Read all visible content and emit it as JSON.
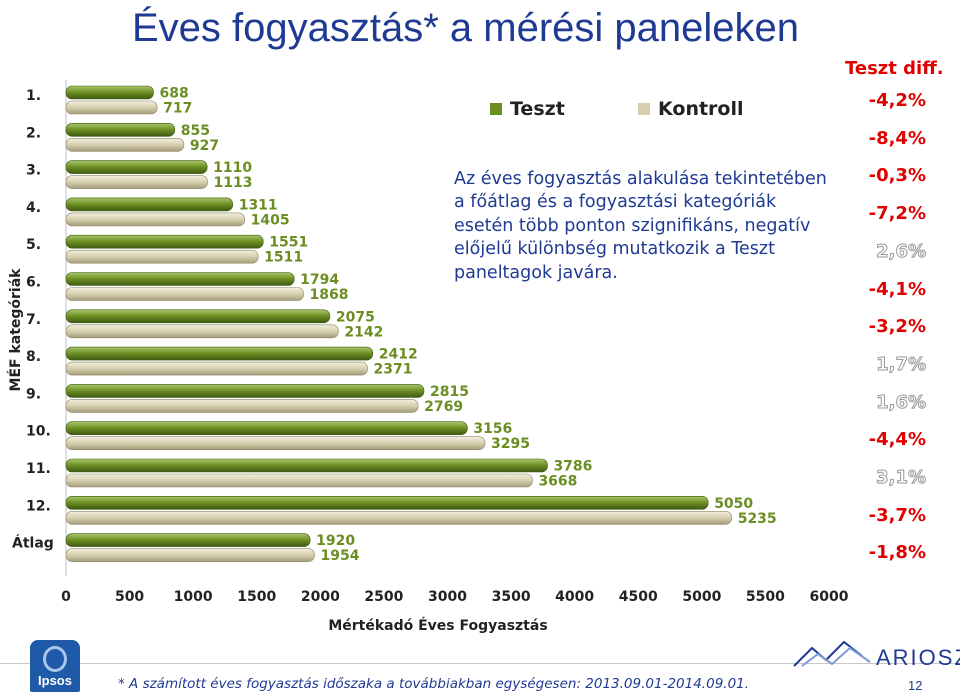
{
  "title": "Éves fogyasztás* a mérési paneleken",
  "annotation": "Az éves fogyasztás alakulása tekintetében a főátlag és a fogyasztási kategóriák esetén több ponton szignifikáns, negatív előjelű különbség mutatkozik a Teszt paneltagok javára.",
  "diff_header": "Teszt diff.",
  "diffs": [
    "-4,2%",
    "-8,4%",
    "-0,3%",
    "-7,2%",
    "2,6%",
    "-4,1%",
    "-3,2%",
    "1,7%",
    "1,6%",
    "-4,4%",
    "3,1%",
    "-3,7%",
    "-1,8%"
  ],
  "footnote": "* A számított éves fogyasztás időszaka a továbbiakban egységesen: 2013.09.01-2014.09.01.",
  "logo_left": "Ipsos",
  "logo_right": "ARIOSZ",
  "page_number": "12",
  "colors": {
    "teszt": "#6b8e23",
    "kontroll": "#d6cfb0",
    "label": "#6b8e23",
    "axis_text": "#222222",
    "title": "#1f3a93",
    "negative": "#e00000"
  },
  "chart_data": {
    "type": "bar",
    "orientation": "horizontal",
    "categories": [
      "1.",
      "2.",
      "3.",
      "4.",
      "5.",
      "6.",
      "7.",
      "8.",
      "9.",
      "10.",
      "11.",
      "12.",
      "Átlag"
    ],
    "series": [
      {
        "name": "Teszt",
        "values": [
          688,
          855,
          1110,
          1311,
          1551,
          1794,
          2075,
          2412,
          2815,
          3156,
          3786,
          5050,
          1920
        ]
      },
      {
        "name": "Kontroll",
        "values": [
          717,
          927,
          1113,
          1405,
          1511,
          1868,
          2142,
          2371,
          2769,
          3295,
          3668,
          5235,
          1954
        ]
      }
    ],
    "xlabel": "Mértékadó Éves Fogyasztás",
    "ylabel": "MÉF kategóriák",
    "xlim": [
      0,
      6000
    ],
    "xticks": [
      0,
      500,
      1000,
      1500,
      2000,
      2500,
      3000,
      3500,
      4000,
      4500,
      5000,
      5500,
      6000
    ],
    "legend_position": "top-right"
  }
}
